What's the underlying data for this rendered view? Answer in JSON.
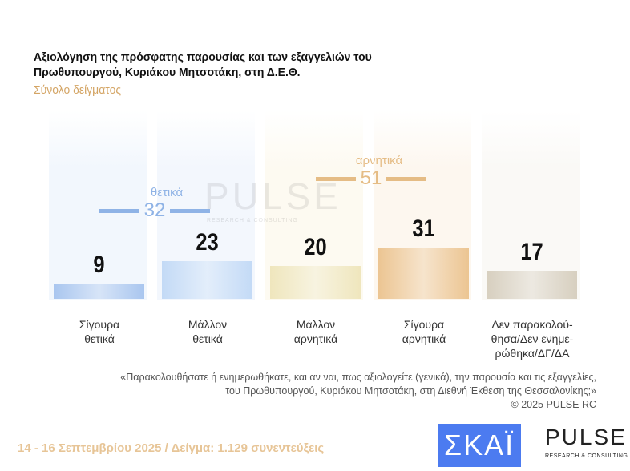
{
  "chart_data": {
    "type": "bar",
    "title": "Αξιολόγηση της πρόσφατης παρουσίας και των εξαγγελιών του Πρωθυπουργού, Κυριάκου Μητσοτάκη, στη Δ.Ε.Θ.",
    "subtitle": "Σύνολο δείγματος",
    "categories": [
      "Σίγουρα θετικά",
      "Μάλλον θετικά",
      "Μάλλον αρνητικά",
      "Σίγουρα αρνητικά",
      "Δεν παρακολού-θησα/Δεν ενημε-ρώθηκα/ΔΓ/ΔΑ"
    ],
    "category_lines": [
      [
        "Σίγουρα",
        "θετικά"
      ],
      [
        "Μάλλον",
        "θετικά"
      ],
      [
        "Μάλλον",
        "αρνητικά"
      ],
      [
        "Σίγουρα",
        "αρνητικά"
      ],
      [
        "Δεν παρακολού-",
        "θησα/Δεν ενημε-",
        "ρώθηκα/ΔΓ/ΔΑ"
      ]
    ],
    "values": [
      9,
      23,
      20,
      31,
      17
    ],
    "colors": [
      "#a9c6ef",
      "#c3daf6",
      "#efe6bd",
      "#ecc592",
      "#d7cfbf"
    ],
    "groups": [
      {
        "label": "θετικά",
        "value": 32,
        "color": "#8fb3e6"
      },
      {
        "label": "αρνητικά",
        "value": 51,
        "color": "#e5bc85"
      }
    ]
  },
  "note": {
    "line1": "«Παρακολουθήσατε ή ενημερωθήκατε, και αν ναι, πως αξιολογείτε (γενικά), την παρουσία και τις εξαγγελίες,",
    "line2": "του Πρωθυπουργού, Κυριάκου Μητσοτάκη, στη Διεθνή Έκθεση της Θεσσαλονίκης;»",
    "copyright": "©  2025  PULSE RC"
  },
  "footer": "14 - 16 Σεπτεμβρίου 2025  /  Δείγμα:  1.129 συνεντεύξεις",
  "logos": {
    "skai": "ΣΚΑΪ",
    "pulse": "PULSE",
    "pulse_sub": "RESEARCH & CONSULTING"
  },
  "watermark": {
    "text": "PULSE",
    "sub": "RESEARCH & CONSULTING"
  }
}
